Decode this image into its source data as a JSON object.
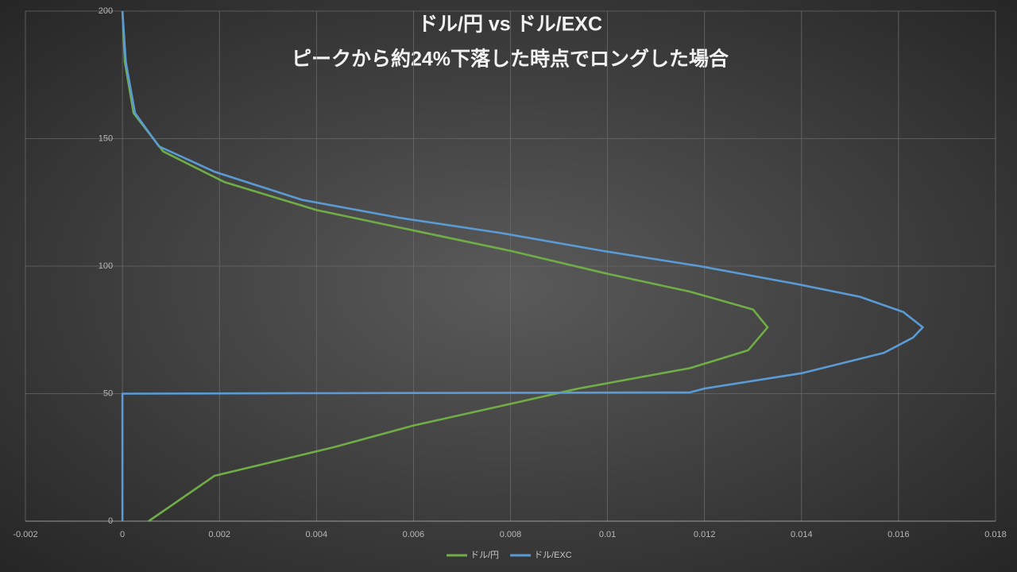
{
  "chart_data": {
    "type": "line",
    "title": "ドル/円 vs ドル/EXC",
    "subtitle": "ピークから約24%下落した時点でロングした場合",
    "xlim": [
      -0.002,
      0.018
    ],
    "xticks": [
      -0.002,
      0,
      0.002,
      0.004,
      0.006,
      0.008,
      0.01,
      0.012,
      0.014,
      0.016,
      0.018
    ],
    "ylim": [
      0,
      200
    ],
    "yticks": [
      0,
      50,
      100,
      150,
      200
    ],
    "grid": true,
    "legend": "bottom",
    "series": [
      {
        "name": "ドル/円",
        "color": "#70ad47",
        "x": [
          0.00054,
          0.0019,
          0.00436,
          0.006,
          0.008,
          0.0094,
          0.0117,
          0.0129,
          0.0133,
          0.013,
          0.0117,
          0.01,
          0.008,
          0.006,
          0.004,
          0.0021,
          0.00084,
          0.00023,
          5e-05,
          0
        ],
        "values": [
          0,
          17.8,
          29,
          37.5,
          46,
          52,
          60,
          67,
          76,
          83,
          90,
          97,
          106,
          114,
          122,
          133,
          145,
          160,
          180,
          200
        ]
      },
      {
        "name": "ドル/EXC",
        "color": "#5b9bd5",
        "x": [
          0,
          0,
          0.0117,
          0.012,
          0.014,
          0.0157,
          0.0163,
          0.0165,
          0.0161,
          0.0152,
          0.0139,
          0.0119,
          0.0099,
          0.0078,
          0.0057,
          0.0037,
          0.0019,
          0.00075,
          0.00026,
          7e-05,
          0
        ],
        "values": [
          0,
          50,
          50.5,
          52,
          58,
          66,
          72,
          76,
          82,
          88,
          93,
          100,
          106,
          113,
          119,
          126,
          137,
          147,
          160,
          180,
          200
        ]
      }
    ]
  }
}
